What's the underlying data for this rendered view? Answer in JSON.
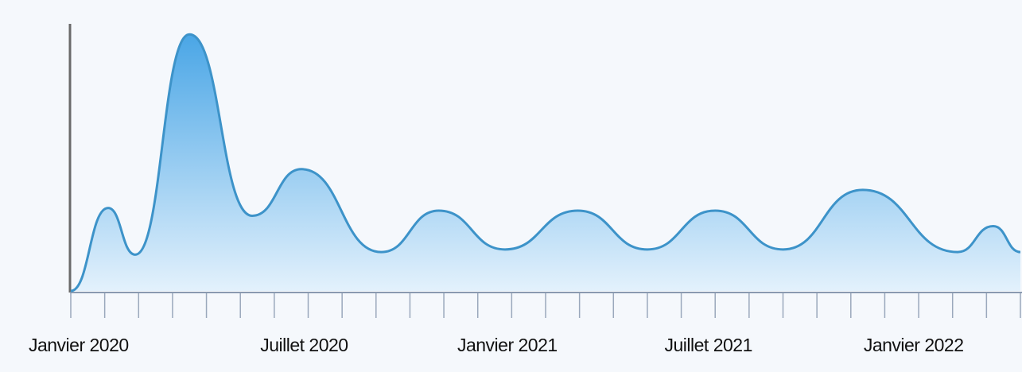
{
  "chart_data": {
    "type": "area",
    "x": [
      0,
      1.1,
      1.9,
      3.5,
      5.35,
      6.8,
      9.15,
      10.85,
      12.8,
      14.95,
      17.0,
      19.0,
      21.0,
      23.35,
      26.15,
      27.2,
      28
    ],
    "values": [
      0,
      32,
      14,
      99,
      29,
      47,
      15,
      31,
      16,
      31,
      16,
      31,
      16,
      39,
      15,
      25,
      15
    ],
    "xlim": [
      0,
      28
    ],
    "ylim": [
      0,
      100
    ],
    "xticks": [
      0,
      1,
      2,
      3,
      4,
      5,
      6,
      7,
      8,
      9,
      10,
      11,
      12,
      13,
      14,
      15,
      16,
      17,
      18,
      19,
      20,
      21,
      22,
      23,
      24,
      25,
      26,
      27,
      28
    ],
    "xtick_labels": [
      {
        "value": 0.23,
        "label": "Janvier 2020"
      },
      {
        "value": 6.88,
        "label": "Juillet 2020"
      },
      {
        "value": 12.87,
        "label": "Janvier 2021"
      },
      {
        "value": 18.8,
        "label": "Juillet 2021"
      },
      {
        "value": 24.85,
        "label": "Janvier 2022"
      }
    ],
    "color": "#3d93c9"
  }
}
